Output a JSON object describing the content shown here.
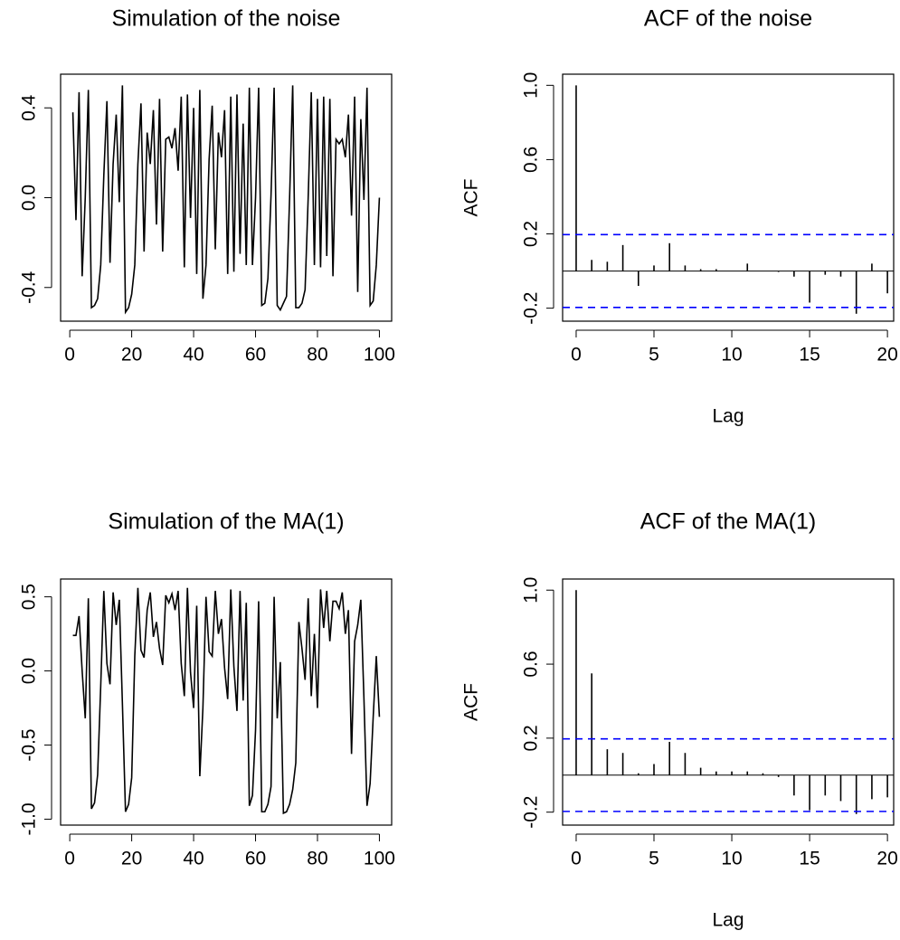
{
  "chart_data": [
    {
      "type": "line",
      "title": "Simulation of the noise",
      "color": "#000000",
      "x": [
        1,
        2,
        3,
        4,
        5,
        6,
        7,
        8,
        9,
        10,
        11,
        12,
        13,
        14,
        15,
        16,
        17,
        18,
        19,
        20,
        21,
        22,
        23,
        24,
        25,
        26,
        27,
        28,
        29,
        30,
        31,
        32,
        33,
        34,
        35,
        36,
        37,
        38,
        39,
        40,
        41,
        42,
        43,
        44,
        45,
        46,
        47,
        48,
        49,
        50,
        51,
        52,
        53,
        54,
        55,
        56,
        57,
        58,
        59,
        60,
        61,
        62,
        63,
        64,
        65,
        66,
        67,
        68,
        69,
        70,
        71,
        72,
        73,
        74,
        75,
        76,
        77,
        78,
        79,
        80,
        81,
        82,
        83,
        84,
        85,
        86,
        87,
        88,
        89,
        90,
        91,
        92,
        93,
        94,
        95,
        96,
        97,
        98,
        99,
        100
      ],
      "values": [
        0.38,
        -0.1,
        0.47,
        -0.35,
        0.0,
        0.48,
        -0.49,
        -0.48,
        -0.45,
        -0.3,
        0.1,
        0.43,
        -0.29,
        0.15,
        0.37,
        -0.02,
        0.5,
        -0.51,
        -0.49,
        -0.43,
        -0.3,
        0.15,
        0.42,
        -0.24,
        0.29,
        0.15,
        0.39,
        -0.12,
        0.44,
        -0.24,
        0.26,
        0.27,
        0.22,
        0.31,
        0.12,
        0.45,
        -0.31,
        0.46,
        -0.09,
        0.4,
        -0.34,
        0.48,
        -0.45,
        -0.3,
        0.17,
        0.41,
        -0.23,
        0.29,
        0.18,
        0.39,
        -0.34,
        0.45,
        -0.33,
        0.46,
        -0.25,
        0.33,
        -0.3,
        0.49,
        -0.3,
        0.0,
        0.49,
        -0.48,
        -0.47,
        -0.36,
        0.01,
        0.49,
        -0.48,
        -0.5,
        -0.47,
        -0.44,
        0.0,
        0.5,
        -0.49,
        -0.49,
        -0.47,
        -0.41,
        0.0,
        0.47,
        -0.3,
        0.44,
        -0.31,
        0.45,
        -0.26,
        0.44,
        -0.35,
        0.26,
        0.24,
        0.26,
        0.18,
        0.37,
        -0.08,
        0.45,
        -0.42,
        0.35,
        -0.01,
        0.49,
        -0.48,
        -0.46,
        -0.3,
        0.0
      ],
      "xlim": [
        -2.96,
        103.96
      ],
      "xticks": [
        0,
        20,
        40,
        60,
        80,
        100
      ],
      "ylim": [
        -0.55,
        0.55
      ],
      "yticks": [
        -0.4,
        {
          "value": 0,
          "label": "0.0"
        },
        0.4
      ]
    },
    {
      "type": "acf",
      "title": "ACF of the noise",
      "xlabel": "Lag",
      "ylabel": "ACF",
      "color": "#000000",
      "x": [
        0,
        1,
        2,
        3,
        4,
        5,
        6,
        7,
        8,
        9,
        10,
        11,
        12,
        13,
        14,
        15,
        16,
        17,
        18,
        19,
        20
      ],
      "values": [
        1.0,
        0.06,
        0.05,
        0.14,
        -0.08,
        0.03,
        0.15,
        0.03,
        0.01,
        0.01,
        0.0,
        0.04,
        0.0,
        -0.005,
        -0.03,
        -0.17,
        -0.02,
        -0.03,
        -0.23,
        0.04,
        -0.12
      ],
      "ci_bound": 0.196,
      "ci_color": "#0000ff",
      "xlim": [
        -0.87,
        20.4
      ],
      "xticks": [
        0,
        5,
        10,
        15,
        20
      ],
      "ylim": [
        -0.27,
        1.06
      ],
      "yticks": [
        -0.2,
        0.2,
        0.6,
        {
          "value": 1,
          "label": "1.0"
        }
      ]
    },
    {
      "type": "line",
      "title": "Simulation of the MA(1)",
      "color": "#000000",
      "x": [
        1,
        2,
        3,
        4,
        5,
        6,
        7,
        8,
        9,
        10,
        11,
        12,
        13,
        14,
        15,
        16,
        17,
        18,
        19,
        20,
        21,
        22,
        23,
        24,
        25,
        26,
        27,
        28,
        29,
        30,
        31,
        32,
        33,
        34,
        35,
        36,
        37,
        38,
        39,
        40,
        41,
        42,
        43,
        44,
        45,
        46,
        47,
        48,
        49,
        50,
        51,
        52,
        53,
        54,
        55,
        56,
        57,
        58,
        59,
        60,
        61,
        62,
        63,
        64,
        65,
        66,
        67,
        68,
        69,
        70,
        71,
        72,
        73,
        74,
        75,
        76,
        77,
        78,
        79,
        80,
        81,
        82,
        83,
        84,
        85,
        86,
        87,
        88,
        89,
        90,
        91,
        92,
        93,
        94,
        95,
        96,
        97,
        98,
        99,
        100
      ],
      "values": [
        0.24,
        0.24,
        0.37,
        0.0,
        -0.32,
        0.49,
        -0.93,
        -0.89,
        -0.7,
        -0.1,
        0.54,
        0.05,
        -0.09,
        0.53,
        0.31,
        0.48,
        -0.22,
        -0.95,
        -0.9,
        -0.72,
        0.1,
        0.56,
        0.14,
        0.09,
        0.41,
        0.53,
        0.23,
        0.33,
        0.15,
        0.04,
        0.51,
        0.46,
        0.52,
        0.41,
        0.54,
        0.05,
        -0.17,
        0.56,
        -0.01,
        -0.25,
        0.44,
        -0.71,
        -0.25,
        0.5,
        0.13,
        0.1,
        0.54,
        0.25,
        0.35,
        0.02,
        -0.19,
        0.55,
        0.03,
        -0.27,
        0.54,
        -0.2,
        0.46,
        -0.91,
        -0.84,
        -0.4,
        0.47,
        -0.95,
        -0.95,
        -0.9,
        -0.78,
        0.5,
        -0.32,
        0.06,
        -0.96,
        -0.95,
        -0.9,
        -0.8,
        -0.62,
        0.33,
        0.15,
        -0.06,
        0.49,
        -0.17,
        0.25,
        -0.25,
        0.55,
        0.29,
        0.54,
        0.2,
        0.47,
        0.47,
        0.42,
        0.53,
        0.25,
        0.41,
        -0.56,
        0.2,
        0.31,
        0.48,
        -0.18,
        -0.91,
        -0.76,
        -0.31,
        0.1,
        -0.31
      ],
      "xlim": [
        -2.96,
        103.96
      ],
      "xticks": [
        0,
        20,
        40,
        60,
        80,
        100
      ],
      "ylim": [
        -1.04,
        0.62
      ],
      "yticks": [
        {
          "value": -1,
          "label": "-1.0"
        },
        -0.5,
        {
          "value": 0,
          "label": "0.0"
        },
        0.5
      ]
    },
    {
      "type": "acf",
      "title": "ACF of the MA(1)",
      "xlabel": "Lag",
      "ylabel": "ACF",
      "color": "#000000",
      "x": [
        0,
        1,
        2,
        3,
        4,
        5,
        6,
        7,
        8,
        9,
        10,
        11,
        12,
        13,
        14,
        15,
        16,
        17,
        18,
        19,
        20
      ],
      "values": [
        1.0,
        0.55,
        0.14,
        0.12,
        0.01,
        0.06,
        0.18,
        0.12,
        0.04,
        0.02,
        0.02,
        0.02,
        0.01,
        -0.01,
        -0.11,
        -0.19,
        -0.11,
        -0.14,
        -0.21,
        -0.13,
        -0.12
      ],
      "ci_bound": 0.196,
      "ci_color": "#0000ff",
      "xlim": [
        -0.87,
        20.4
      ],
      "xticks": [
        0,
        5,
        10,
        15,
        20
      ],
      "ylim": [
        -0.27,
        1.06
      ],
      "yticks": [
        -0.2,
        0.2,
        0.6,
        {
          "value": 1,
          "label": "1.0"
        }
      ]
    }
  ]
}
